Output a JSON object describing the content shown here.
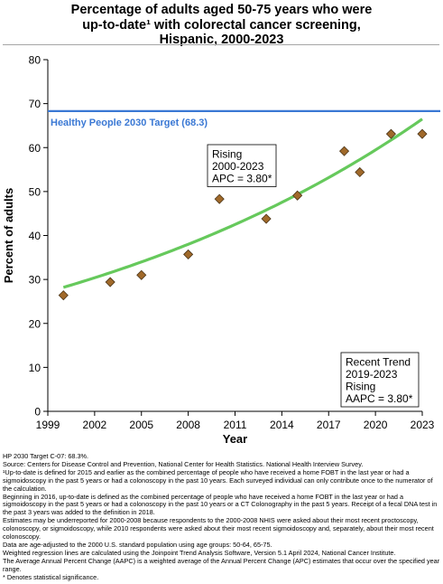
{
  "title_lines": [
    "Percentage of adults aged 50-75 years who were",
    "up-to-date¹ with colorectal cancer screening,",
    "Hispanic,  2000-2023"
  ],
  "chart_data": {
    "type": "scatter",
    "xlabel": "Year",
    "ylabel": "Percent of adults",
    "xlim": [
      1999,
      2023
    ],
    "ylim": [
      0,
      80
    ],
    "x_ticks": [
      1999,
      2002,
      2005,
      2008,
      2011,
      2014,
      2017,
      2020,
      2023
    ],
    "y_ticks": [
      0,
      10,
      20,
      30,
      40,
      50,
      60,
      70,
      80
    ],
    "grid": false,
    "observed": {
      "x": [
        2000,
        2003,
        2005,
        2008,
        2010,
        2013,
        2015,
        2018,
        2019,
        2021,
        2023
      ],
      "y": [
        26.4,
        29.4,
        31.0,
        35.7,
        48.3,
        43.8,
        49.1,
        59.2,
        54.4,
        63.1,
        63.1
      ],
      "color": "#a0692a"
    },
    "trend": {
      "start_year": 2000,
      "end_year": 2023,
      "start_value": 28.2,
      "apc": 3.8,
      "color": "#66c95c"
    },
    "target": {
      "value": 68.3,
      "label": "Healthy People 2030 Target (68.3)",
      "color": "#3a78d4"
    },
    "annotations": {
      "segment": [
        "Rising",
        "2000-2023",
        "APC =  3.80*"
      ],
      "recent": [
        "Recent Trend",
        "2019-2023",
        "Rising",
        "AAPC =  3.80*"
      ]
    }
  },
  "footnotes": [
    "HP 2030 Target C-07: 68.3%.",
    "Source: Centers for Disease Control and Prevention, National Center for Health Statistics. National Health Interview Survey.",
    "¹Up-to-date is defined for 2015 and earlier as the combined percentage of people who have received a home FOBT in the last year or had a sigmoidoscopy in the past 5 years or had a colonoscopy in the past 10 years. Each surveyed individual can only contribute once to the numerator of the calculation.",
    "Beginning in 2016, up-to-date is defined as the combined percentage of people who have received a home FOBT in the last year or had a sigmoidoscopy in the past 5 years or had a colonoscopy in the past 10 years or a CT Colonography in the past 5 years. Receipt of a fecal DNA test in the past 3 years was added to the definition in 2018.",
    "Estimates may be underreported for 2000-2008 because respondents to the 2000-2008 NHIS were asked about their most recent proctoscopy, colonoscopy, or sigmoidoscopy, while 2010 respondents were asked about their most recent sigmoidoscopy and, separately, about their most recent colonoscopy.",
    "Data are age-adjusted to the 2000 U.S. standard population using age groups: 50-64, 65-75.",
    "Weighted regression lines are calculated using the Joinpoint Trend Analysis Software, Version 5.1 April 2024, National Cancer Institute.",
    "The Average Annual Percent Change (AAPC) is a weighted average of the Annual Percent Change (APC) estimates that occur over the specified year range.",
    "* Denotes statistical significance."
  ]
}
